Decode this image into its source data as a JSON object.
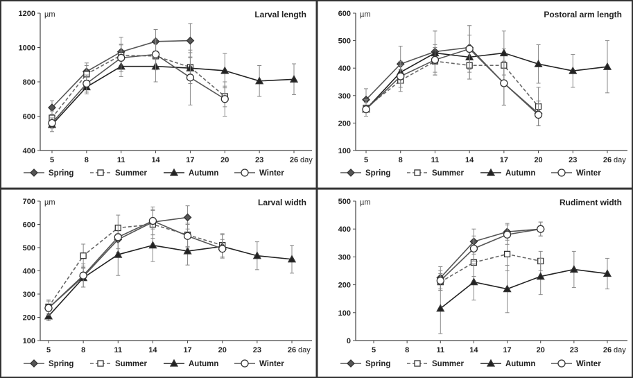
{
  "chart_data": [
    {
      "type": "line",
      "title": "Larval length",
      "ylabel": "µm",
      "xlabel": "day",
      "x": [
        5,
        8,
        11,
        14,
        17,
        20,
        23,
        26
      ],
      "xticks": [
        "5",
        "8",
        "11",
        "14",
        "17",
        "20",
        "23",
        "26"
      ],
      "ylim": [
        400,
        1200
      ],
      "yticks": [
        400,
        600,
        800,
        1000,
        1200
      ],
      "legend_position": "bottom",
      "series": [
        {
          "name": "Spring",
          "x": [
            5,
            8,
            11,
            14,
            17
          ],
          "values": [
            650,
            860,
            975,
            1035,
            1040
          ],
          "errors": [
            40,
            50,
            85,
            70,
            100
          ]
        },
        {
          "name": "Summer",
          "x": [
            5,
            8,
            11,
            14,
            17,
            20
          ],
          "values": [
            590,
            845,
            955,
            950,
            885,
            715
          ],
          "errors": [
            40,
            50,
            60,
            70,
            60,
            60
          ]
        },
        {
          "name": "Autumn",
          "x": [
            5,
            8,
            11,
            14,
            17,
            20,
            23,
            26
          ],
          "values": [
            550,
            770,
            890,
            890,
            880,
            865,
            805,
            815
          ],
          "errors": [
            40,
            40,
            60,
            90,
            90,
            100,
            90,
            90
          ]
        },
        {
          "name": "Winter",
          "x": [
            5,
            8,
            11,
            14,
            17,
            20
          ],
          "values": [
            560,
            790,
            940,
            960,
            825,
            700
          ],
          "errors": [
            30,
            50,
            80,
            90,
            160,
            100
          ]
        }
      ]
    },
    {
      "type": "line",
      "title": "Postoral arm length",
      "ylabel": "µm",
      "xlabel": "day",
      "x": [
        5,
        8,
        11,
        14,
        17,
        20,
        23,
        26
      ],
      "xticks": [
        "5",
        "8",
        "11",
        "14",
        "17",
        "20",
        "23",
        "26"
      ],
      "ylim": [
        100,
        600
      ],
      "yticks": [
        100,
        200,
        300,
        400,
        500,
        600
      ],
      "legend_position": "bottom",
      "series": [
        {
          "name": "Spring",
          "x": [
            5,
            8,
            11,
            14,
            17,
            20
          ],
          "values": [
            285,
            415,
            460,
            475,
            345,
            235
          ],
          "errors": [
            40,
            65,
            75,
            80,
            80,
            45
          ]
        },
        {
          "name": "Summer",
          "x": [
            5,
            8,
            11,
            14,
            17,
            20
          ],
          "values": [
            255,
            355,
            425,
            410,
            410,
            260
          ],
          "errors": [
            30,
            40,
            50,
            50,
            60,
            70
          ]
        },
        {
          "name": "Autumn",
          "x": [
            5,
            8,
            11,
            14,
            17,
            20,
            23,
            26
          ],
          "values": [
            250,
            385,
            455,
            440,
            455,
            415,
            390,
            405
          ],
          "errors": [
            25,
            40,
            80,
            80,
            80,
            70,
            60,
            95
          ]
        },
        {
          "name": "Winter",
          "x": [
            5,
            8,
            11,
            14,
            17,
            20
          ],
          "values": [
            250,
            370,
            430,
            470,
            345,
            230
          ],
          "errors": [
            25,
            40,
            55,
            85,
            80,
            40
          ]
        }
      ]
    },
    {
      "type": "line",
      "title": "Larval width",
      "ylabel": "µm",
      "xlabel": "day",
      "x": [
        5,
        8,
        11,
        14,
        17,
        20,
        23,
        26
      ],
      "xticks": [
        "5",
        "8",
        "11",
        "14",
        "17",
        "20",
        "23",
        "26"
      ],
      "ylim": [
        100,
        700
      ],
      "yticks": [
        100,
        200,
        300,
        400,
        500,
        600,
        700
      ],
      "legend_position": "bottom",
      "series": [
        {
          "name": "Spring",
          "x": [
            5,
            8,
            11,
            14,
            17
          ],
          "values": [
            240,
            375,
            535,
            610,
            630
          ],
          "errors": [
            30,
            45,
            55,
            55,
            50
          ]
        },
        {
          "name": "Summer",
          "x": [
            5,
            8,
            11,
            14,
            17,
            20
          ],
          "values": [
            245,
            465,
            585,
            600,
            555,
            510
          ],
          "errors": [
            30,
            50,
            55,
            60,
            50,
            50
          ]
        },
        {
          "name": "Autumn",
          "x": [
            5,
            8,
            11,
            14,
            17,
            20,
            23,
            26
          ],
          "values": [
            205,
            370,
            470,
            510,
            485,
            505,
            465,
            450
          ],
          "errors": [
            20,
            40,
            90,
            70,
            60,
            50,
            60,
            60
          ]
        },
        {
          "name": "Winter",
          "x": [
            5,
            8,
            11,
            14,
            17,
            20
          ],
          "values": [
            240,
            380,
            545,
            615,
            550,
            495
          ],
          "errors": [
            30,
            50,
            50,
            60,
            50,
            40
          ]
        }
      ]
    },
    {
      "type": "line",
      "title": "Rudiment width",
      "ylabel": "µm",
      "xlabel": "day",
      "x": [
        5,
        8,
        11,
        14,
        17,
        20,
        23,
        26
      ],
      "xticks": [
        "5",
        "8",
        "11",
        "14",
        "17",
        "20",
        "23",
        "26"
      ],
      "ylim": [
        0,
        500
      ],
      "yticks": [
        0,
        100,
        200,
        300,
        400,
        500
      ],
      "legend_position": "bottom",
      "series": [
        {
          "name": "Spring",
          "x": [
            11,
            14,
            17,
            20
          ],
          "values": [
            225,
            355,
            390,
            400
          ],
          "errors": [
            40,
            45,
            30,
            25
          ]
        },
        {
          "name": "Summer",
          "x": [
            11,
            14,
            17,
            20
          ],
          "values": [
            210,
            280,
            310,
            285
          ],
          "errors": [
            30,
            50,
            60,
            35
          ]
        },
        {
          "name": "Autumn",
          "x": [
            11,
            14,
            17,
            20,
            23,
            26
          ],
          "values": [
            115,
            210,
            185,
            230,
            255,
            240
          ],
          "errors": [
            90,
            65,
            85,
            65,
            65,
            55
          ]
        },
        {
          "name": "Winter",
          "x": [
            11,
            14,
            17,
            20
          ],
          "values": [
            215,
            330,
            380,
            400
          ],
          "errors": [
            35,
            45,
            35,
            25
          ]
        }
      ]
    }
  ],
  "series_style": {
    "Spring": {
      "marker": "diamond",
      "fill": "#555555",
      "dash": "",
      "color": "#555555"
    },
    "Summer": {
      "marker": "square",
      "fill": "#ffffff",
      "dash": "5,3",
      "color": "#666666"
    },
    "Autumn": {
      "marker": "triangle",
      "fill": "#222222",
      "dash": "",
      "color": "#222222"
    },
    "Winter": {
      "marker": "circle",
      "fill": "#ffffff",
      "dash": "",
      "color": "#555555"
    }
  },
  "colors": {
    "frame": "#333333",
    "axis": "#444444",
    "errorbar": "#888888"
  }
}
